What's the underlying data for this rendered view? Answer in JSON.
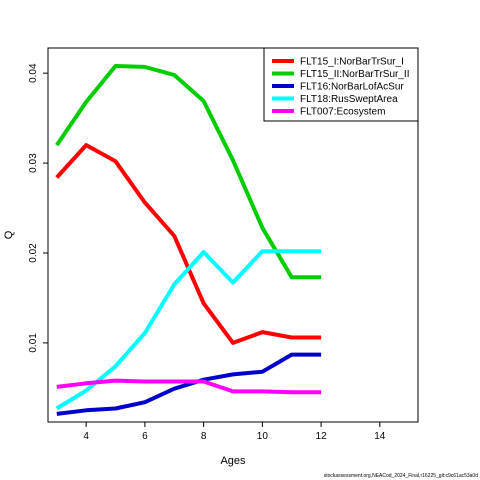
{
  "chart_data": {
    "type": "line",
    "title": "",
    "xlabel": "Ages",
    "ylabel": "Q",
    "xlim": [
      2.7,
      15.3
    ],
    "ylim": [
      0.0012,
      0.0428
    ],
    "xticks": [
      4,
      6,
      8,
      10,
      12,
      14
    ],
    "yticks": [
      0.01,
      0.02,
      0.03,
      0.04
    ],
    "xtick_labels": [
      "4",
      "6",
      "8",
      "10",
      "12",
      "14"
    ],
    "ytick_labels": [
      "0.01",
      "0.02",
      "0.03",
      "0.04"
    ],
    "grid": false,
    "legend_position": "top-right",
    "footer": "stockassessment.org,NEACod_2024_Final,r16225_git:c9c61ac53a0d",
    "x": [
      3,
      4,
      5,
      6,
      7,
      8,
      9,
      10,
      11,
      12
    ],
    "series": [
      {
        "name": "FLT15_I:NorBarTrSur_I",
        "color": "#ff0000",
        "values": [
          0.0284,
          0.032,
          0.0302,
          0.0256,
          0.0219,
          0.0144,
          0.01,
          0.0112,
          0.0106,
          0.0106
        ]
      },
      {
        "name": "FLT15_II:NorBarTrSur_II",
        "color": "#00cd00",
        "values": [
          0.032,
          0.0368,
          0.0408,
          0.0407,
          0.0398,
          0.0369,
          0.0303,
          0.0228,
          0.0173,
          0.0173
        ]
      },
      {
        "name": "FLT16:NorBarLofAcSur",
        "color": "#0000cd",
        "values": [
          0.0021,
          0.0025,
          0.0027,
          0.0034,
          0.0049,
          0.0059,
          0.0065,
          0.0068,
          0.0087,
          0.0087
        ]
      },
      {
        "name": "FLT18:RusSweptArea",
        "color": "#00ffff",
        "values": [
          0.0027,
          0.0047,
          0.0074,
          0.0111,
          0.0165,
          0.0201,
          0.0167,
          0.0202,
          0.0202,
          0.0202
        ]
      },
      {
        "name": "FLT007:Ecosystem",
        "color": "#ff00ff",
        "values": [
          0.0051,
          0.0055,
          0.0058,
          0.0057,
          0.0057,
          0.0057,
          0.0046,
          0.0046,
          0.0045,
          0.0045
        ]
      }
    ]
  }
}
